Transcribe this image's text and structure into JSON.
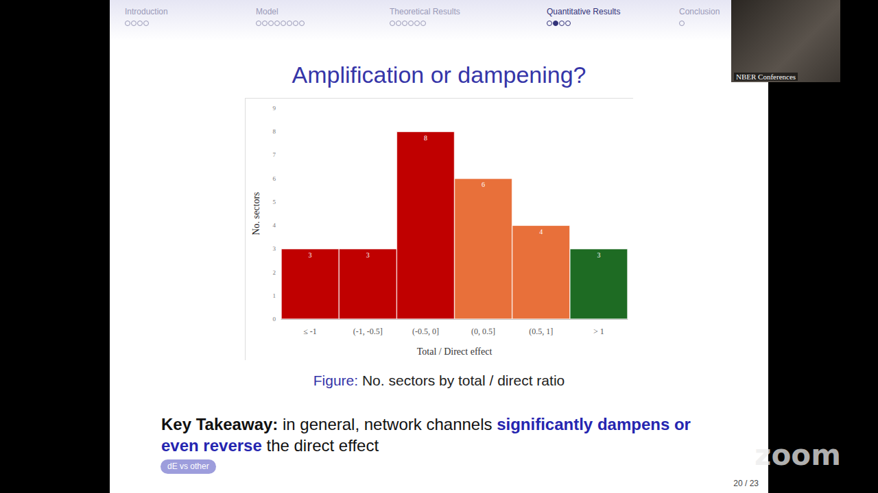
{
  "chart_data": {
    "type": "bar",
    "categories": [
      "≤ -1",
      "(-1, -0.5]",
      "(-0.5, 0]",
      "(0, 0.5]",
      "(0.5, 1]",
      "> 1"
    ],
    "values": [
      3,
      3,
      8,
      6,
      4,
      3
    ],
    "colors": [
      "#c00000",
      "#c00000",
      "#c00000",
      "#e8703a",
      "#e8703a",
      "#1e6b23"
    ],
    "xlabel": "Total / Direct effect",
    "ylabel": "No. sectors",
    "ylim": [
      0,
      9
    ],
    "yticks": [
      0,
      1,
      2,
      3,
      4,
      5,
      6,
      7,
      8,
      9
    ],
    "grid": false,
    "data_labels": true
  },
  "slide": {
    "nav": [
      {
        "label": "Introduction",
        "dots": 4,
        "current": 0
      },
      {
        "label": "Model",
        "dots": 8,
        "current": 0
      },
      {
        "label": "Theoretical Results",
        "dots": 6,
        "current": 0
      },
      {
        "label": "Quantitative Results",
        "dots": 4,
        "current": 2
      },
      {
        "label": "Conclusion",
        "dots": 1,
        "current": 0
      }
    ],
    "title": "Amplification or dampening?",
    "caption": [
      {
        "text": "Figure:",
        "style": "lead"
      },
      {
        "text": " No. sectors by total / direct ratio",
        "style": "normal"
      }
    ],
    "takeaway": [
      {
        "text": "Key Takeaway:",
        "style": "bold"
      },
      {
        "text": " in general, network channels ",
        "style": "normal"
      },
      {
        "text": "significantly dampens or even reverse",
        "style": "emph"
      },
      {
        "text": " the direct effect",
        "style": "normal"
      }
    ],
    "button": "dE vs other",
    "page": "20 / 23",
    "camera_label": "NBER Conferences",
    "watermark": "zoom"
  }
}
